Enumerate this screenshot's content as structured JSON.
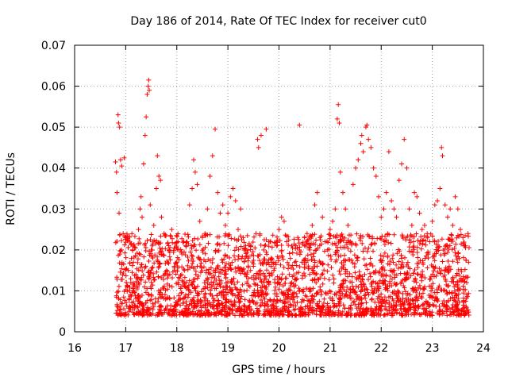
{
  "chart_data": {
    "type": "scatter",
    "title": "Day 186 of 2014, Rate Of TEC Index for receiver cut0",
    "xlabel": "GPS time / hours",
    "ylabel": "ROTI / TECUs",
    "xlim": [
      16,
      24
    ],
    "ylim": [
      0,
      0.07
    ],
    "x_ticks": [
      16,
      17,
      18,
      19,
      20,
      21,
      22,
      23,
      24
    ],
    "y_ticks": [
      0,
      0.01,
      0.02,
      0.03,
      0.04,
      0.05,
      0.06,
      0.07
    ],
    "x_tick_labels": [
      "16",
      "17",
      "18",
      "19",
      "20",
      "21",
      "22",
      "23",
      "24"
    ],
    "y_tick_labels": [
      "0",
      "0.01",
      "0.02",
      "0.03",
      "0.04",
      "0.05",
      "0.06",
      "0.07"
    ],
    "grid": true,
    "marker": "+",
    "series": [
      {
        "name": "ROTI",
        "color": "#ff0000",
        "points": [
          [
            16.8,
            0.0415
          ],
          [
            16.82,
            0.039
          ],
          [
            16.85,
            0.053
          ],
          [
            16.86,
            0.051
          ],
          [
            16.88,
            0.05
          ],
          [
            16.83,
            0.034
          ],
          [
            16.87,
            0.029
          ],
          [
            16.9,
            0.042
          ],
          [
            16.92,
            0.0405
          ],
          [
            16.95,
            0.024
          ],
          [
            16.97,
            0.0425
          ],
          [
            16.99,
            0.023
          ],
          [
            17.05,
            0.015
          ],
          [
            17.1,
            0.012
          ],
          [
            17.15,
            0.017
          ],
          [
            17.2,
            0.014
          ],
          [
            17.25,
            0.025
          ],
          [
            17.28,
            0.03
          ],
          [
            17.3,
            0.033
          ],
          [
            17.32,
            0.028
          ],
          [
            17.35,
            0.041
          ],
          [
            17.38,
            0.048
          ],
          [
            17.4,
            0.0525
          ],
          [
            17.42,
            0.058
          ],
          [
            17.44,
            0.06
          ],
          [
            17.45,
            0.0615
          ],
          [
            17.46,
            0.059
          ],
          [
            17.48,
            0.031
          ],
          [
            17.5,
            0.02
          ],
          [
            17.55,
            0.026
          ],
          [
            17.6,
            0.035
          ],
          [
            17.62,
            0.043
          ],
          [
            17.65,
            0.038
          ],
          [
            17.68,
            0.037
          ],
          [
            17.7,
            0.028
          ],
          [
            17.75,
            0.024
          ],
          [
            17.8,
            0.015
          ],
          [
            17.85,
            0.02
          ],
          [
            17.9,
            0.025
          ],
          [
            17.95,
            0.016
          ],
          [
            18.0,
            0.017
          ],
          [
            18.05,
            0.013
          ],
          [
            18.1,
            0.019
          ],
          [
            18.15,
            0.015
          ],
          [
            18.2,
            0.022
          ],
          [
            18.25,
            0.031
          ],
          [
            18.3,
            0.035
          ],
          [
            18.33,
            0.042
          ],
          [
            18.36,
            0.039
          ],
          [
            18.4,
            0.036
          ],
          [
            18.45,
            0.027
          ],
          [
            18.5,
            0.023
          ],
          [
            18.55,
            0.024
          ],
          [
            18.6,
            0.03
          ],
          [
            18.65,
            0.038
          ],
          [
            18.7,
            0.043
          ],
          [
            18.75,
            0.0495
          ],
          [
            18.8,
            0.034
          ],
          [
            18.85,
            0.029
          ],
          [
            18.9,
            0.031
          ],
          [
            18.95,
            0.026
          ],
          [
            19.0,
            0.029
          ],
          [
            19.05,
            0.033
          ],
          [
            19.1,
            0.035
          ],
          [
            19.15,
            0.032
          ],
          [
            19.2,
            0.025
          ],
          [
            19.25,
            0.03
          ],
          [
            19.3,
            0.023
          ],
          [
            19.35,
            0.02
          ],
          [
            19.4,
            0.018
          ],
          [
            19.45,
            0.021
          ],
          [
            19.5,
            0.016
          ],
          [
            19.55,
            0.024
          ],
          [
            19.58,
            0.047
          ],
          [
            19.6,
            0.045
          ],
          [
            19.65,
            0.048
          ],
          [
            19.7,
            0.02
          ],
          [
            19.75,
            0.0495
          ],
          [
            19.8,
            0.022
          ],
          [
            19.85,
            0.018
          ],
          [
            19.9,
            0.015
          ],
          [
            19.95,
            0.021
          ],
          [
            20.0,
            0.025
          ],
          [
            20.05,
            0.028
          ],
          [
            20.1,
            0.027
          ],
          [
            20.15,
            0.022
          ],
          [
            20.2,
            0.014
          ],
          [
            20.25,
            0.012
          ],
          [
            20.3,
            0.011
          ],
          [
            20.35,
            0.013
          ],
          [
            20.4,
            0.0505
          ],
          [
            20.45,
            0.017
          ],
          [
            20.5,
            0.023
          ],
          [
            20.55,
            0.024
          ],
          [
            20.6,
            0.02
          ],
          [
            20.65,
            0.026
          ],
          [
            20.7,
            0.031
          ],
          [
            20.75,
            0.034
          ],
          [
            20.8,
            0.023
          ],
          [
            20.85,
            0.028
          ],
          [
            20.9,
            0.022
          ],
          [
            20.95,
            0.02
          ],
          [
            21.0,
            0.025
          ],
          [
            21.05,
            0.027
          ],
          [
            21.1,
            0.03
          ],
          [
            21.14,
            0.052
          ],
          [
            21.16,
            0.0555
          ],
          [
            21.18,
            0.051
          ],
          [
            21.2,
            0.039
          ],
          [
            21.25,
            0.034
          ],
          [
            21.3,
            0.03
          ],
          [
            21.35,
            0.026
          ],
          [
            21.4,
            0.022
          ],
          [
            21.45,
            0.036
          ],
          [
            21.5,
            0.04
          ],
          [
            21.55,
            0.042
          ],
          [
            21.6,
            0.046
          ],
          [
            21.62,
            0.048
          ],
          [
            21.65,
            0.044
          ],
          [
            21.7,
            0.05
          ],
          [
            21.72,
            0.0505
          ],
          [
            21.75,
            0.047
          ],
          [
            21.8,
            0.045
          ],
          [
            21.85,
            0.04
          ],
          [
            21.9,
            0.038
          ],
          [
            21.95,
            0.033
          ],
          [
            22.0,
            0.028
          ],
          [
            22.05,
            0.03
          ],
          [
            22.1,
            0.034
          ],
          [
            22.15,
            0.044
          ],
          [
            22.2,
            0.032
          ],
          [
            22.25,
            0.03
          ],
          [
            22.3,
            0.028
          ],
          [
            22.35,
            0.037
          ],
          [
            22.4,
            0.041
          ],
          [
            22.45,
            0.047
          ],
          [
            22.5,
            0.04
          ],
          [
            22.55,
            0.03
          ],
          [
            22.6,
            0.026
          ],
          [
            22.65,
            0.034
          ],
          [
            22.7,
            0.033
          ],
          [
            22.75,
            0.029
          ],
          [
            22.8,
            0.025
          ],
          [
            22.85,
            0.026
          ],
          [
            22.9,
            0.024
          ],
          [
            22.95,
            0.022
          ],
          [
            23.0,
            0.027
          ],
          [
            23.05,
            0.031
          ],
          [
            23.1,
            0.032
          ],
          [
            23.15,
            0.035
          ],
          [
            23.18,
            0.045
          ],
          [
            23.2,
            0.043
          ],
          [
            23.25,
            0.031
          ],
          [
            23.3,
            0.028
          ],
          [
            23.35,
            0.03
          ],
          [
            23.4,
            0.026
          ],
          [
            23.45,
            0.033
          ],
          [
            23.5,
            0.03
          ],
          [
            23.55,
            0.025
          ],
          [
            23.6,
            0.023
          ],
          [
            23.65,
            0.021
          ],
          [
            23.7,
            0.024
          ]
        ],
        "bulk": {
          "x_range": [
            16.8,
            23.72
          ],
          "y_base_range": [
            0.004,
            0.024
          ],
          "count": 2600,
          "note": "dense cloud of ROTI values, mostly 0.005–0.02 TECU/min"
        }
      }
    ]
  }
}
